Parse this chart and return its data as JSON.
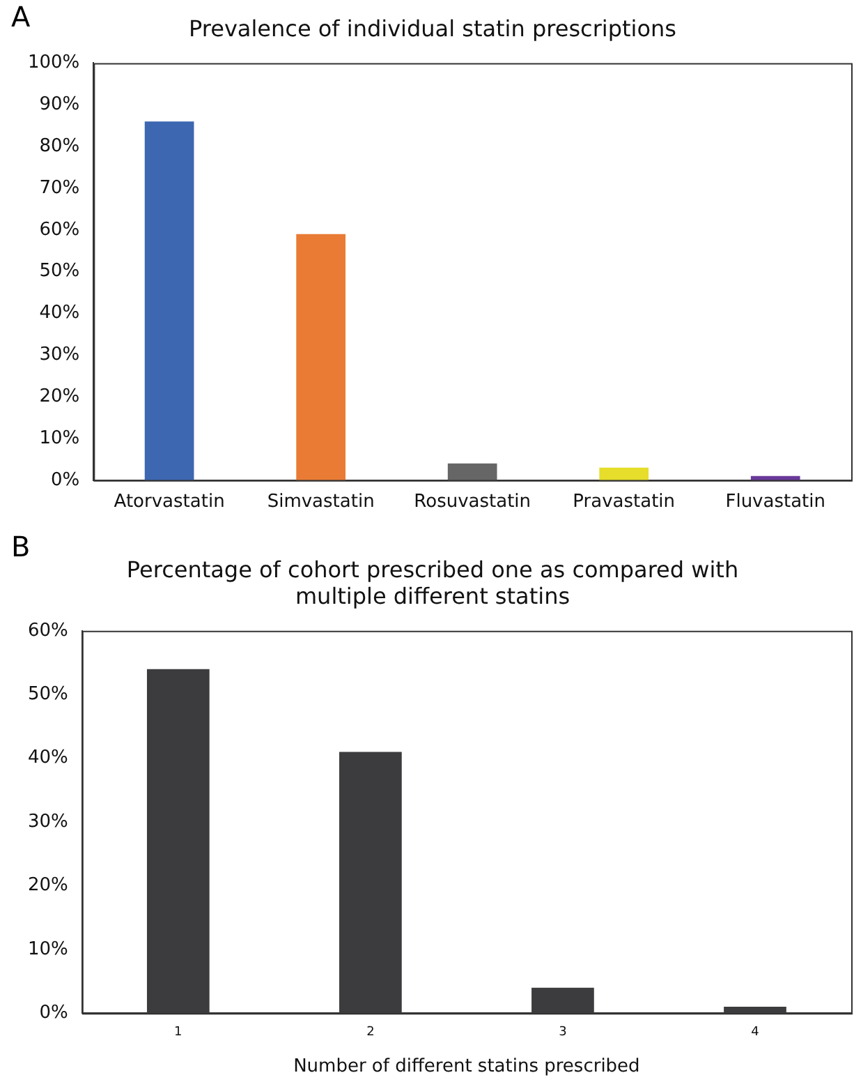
{
  "chart_data": [
    {
      "type": "bar",
      "title": "Prevalence of individual statin prescriptions",
      "annotations": [
        "A"
      ],
      "categories": [
        "Atorvastatin",
        "Simvastatin",
        "Rosuvastatin",
        "Pravastatin",
        "Fluvastatin"
      ],
      "values": [
        86,
        59,
        4,
        3,
        1
      ],
      "colors": [
        "#3d67b0",
        "#e97b35",
        "#666666",
        "#e6de2a",
        "#6a3a9a"
      ],
      "ylim": [
        0,
        100
      ],
      "yticks": [
        {
          "value": 0,
          "label": "0%"
        },
        {
          "value": 10,
          "label": "10%"
        },
        {
          "value": 20,
          "label": "20%"
        },
        {
          "value": 30,
          "label": "30%"
        },
        {
          "value": 40,
          "label": "40%"
        },
        {
          "value": 50,
          "label": "50%"
        },
        {
          "value": 60,
          "label": "60%"
        },
        {
          "value": 70,
          "label": "70%"
        },
        {
          "value": 80,
          "label": "80%"
        },
        {
          "value": 90,
          "label": "90%"
        },
        {
          "value": 100,
          "label": "100%"
        }
      ],
      "grid": false,
      "legend": false
    },
    {
      "type": "bar",
      "title": "Percentage of cohort prescribed one as compared with multiple different statins",
      "annotations": [
        "B"
      ],
      "xlabel": "Number of different statins prescribed",
      "categories": [
        "1",
        "2",
        "3",
        "4"
      ],
      "values": [
        54,
        41,
        4,
        1
      ],
      "color": "#3c3c3e",
      "ylim": [
        0,
        60
      ],
      "yticks": [
        {
          "value": 0,
          "label": "0%"
        },
        {
          "value": 10,
          "label": "10%"
        },
        {
          "value": 20,
          "label": "20%"
        },
        {
          "value": 30,
          "label": "30%"
        },
        {
          "value": 40,
          "label": "40%"
        },
        {
          "value": 50,
          "label": "50%"
        },
        {
          "value": 60,
          "label": "60%"
        }
      ],
      "grid": false,
      "legend": false
    }
  ]
}
